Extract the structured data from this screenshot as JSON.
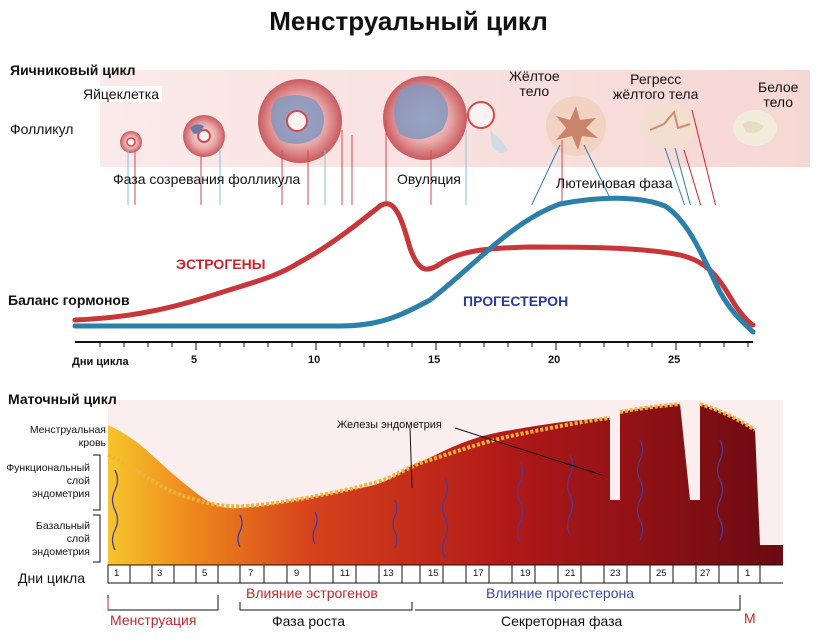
{
  "title": "Менструальный цикл",
  "ovarian": {
    "section_title": "Яичниковый цикл",
    "follicle": "Фолликул",
    "egg": "Яйцеклетка",
    "maturation_phase": "Фаза созревания фолликула",
    "ovulation": "Овуляция",
    "corpus_luteum": [
      "Жёлтое",
      "тело"
    ],
    "regress": [
      "Регресс",
      "жёлтого тела"
    ],
    "white_body": [
      "Белое",
      "тело"
    ],
    "luteal_phase": "Лютеиновая фаза"
  },
  "hormones": {
    "section_title": "Баланс гормонов",
    "estrogen": "ЭСТРОГЕНЫ",
    "progesterone": "ПРОГЕСТЕРОН",
    "axis_label": "Дни цикла",
    "axis_ticks": [
      "5",
      "10",
      "15",
      "20",
      "25"
    ],
    "colors": {
      "estrogen": "#c8363a",
      "progesterone": "#2b7fa8"
    }
  },
  "uterine": {
    "section_title": "Маточный цикл",
    "menstrual_blood": [
      "Менструальная",
      "кровь"
    ],
    "functional_layer": [
      "Функциональный",
      "слой",
      "эндометрия"
    ],
    "basal_layer": [
      "Базальный",
      "слой",
      "эндометрия"
    ],
    "glands": "Железы эндометрия",
    "axis_label": "Дни цикла",
    "day_ticks": [
      "1",
      "3",
      "5",
      "7",
      "9",
      "11",
      "13",
      "15",
      "17",
      "19",
      "21",
      "23",
      "25",
      "27",
      "1"
    ],
    "estrogen_influence": "Влияние эстрогенов",
    "progesterone_influence": "Влияние прогестерона",
    "phases": {
      "menstruation": "Менструация",
      "growth": "Фаза роста",
      "secretory": "Секреторная фаза",
      "m": "М"
    }
  }
}
